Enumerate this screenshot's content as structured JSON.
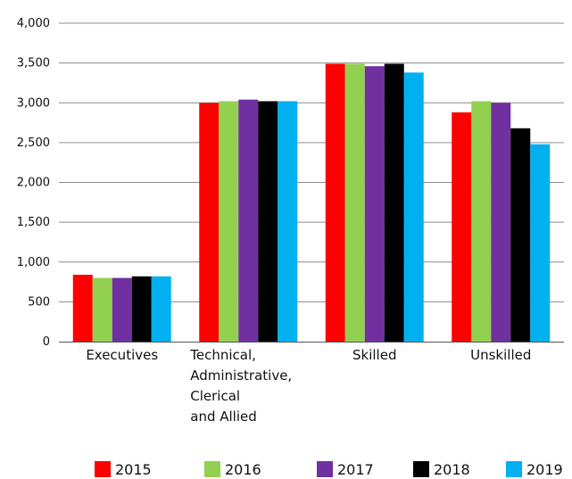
{
  "chart_data": {
    "type": "bar",
    "title": "",
    "xlabel": "",
    "ylabel": "",
    "ylim": [
      0,
      4000
    ],
    "yticks": [
      0,
      500,
      1000,
      1500,
      2000,
      2500,
      3000,
      3500,
      4000
    ],
    "ytick_labels": [
      "0",
      "500",
      "1,000",
      "1,500",
      "2,000",
      "2,500",
      "3,000",
      "3,500",
      "4,000"
    ],
    "grid": true,
    "legend_position": "bottom",
    "categories": [
      [
        "Executives"
      ],
      [
        "Technical,",
        "Administrative,",
        "Clerical",
        " and Allied"
      ],
      [
        "Skilled"
      ],
      [
        "Unskilled"
      ]
    ],
    "series": [
      {
        "name": "2015",
        "color": "#ff0000",
        "values": [
          840,
          3000,
          3490,
          2880
        ]
      },
      {
        "name": "2016",
        "color": "#92d050",
        "values": [
          800,
          3020,
          3490,
          3020
        ]
      },
      {
        "name": "2017",
        "color": "#7030a0",
        "values": [
          800,
          3040,
          3460,
          3000
        ]
      },
      {
        "name": "2018",
        "color": "#000000",
        "values": [
          820,
          3020,
          3490,
          2680
        ]
      },
      {
        "name": "2019",
        "color": "#00b0f0",
        "values": [
          820,
          3020,
          3380,
          2480
        ]
      }
    ]
  }
}
